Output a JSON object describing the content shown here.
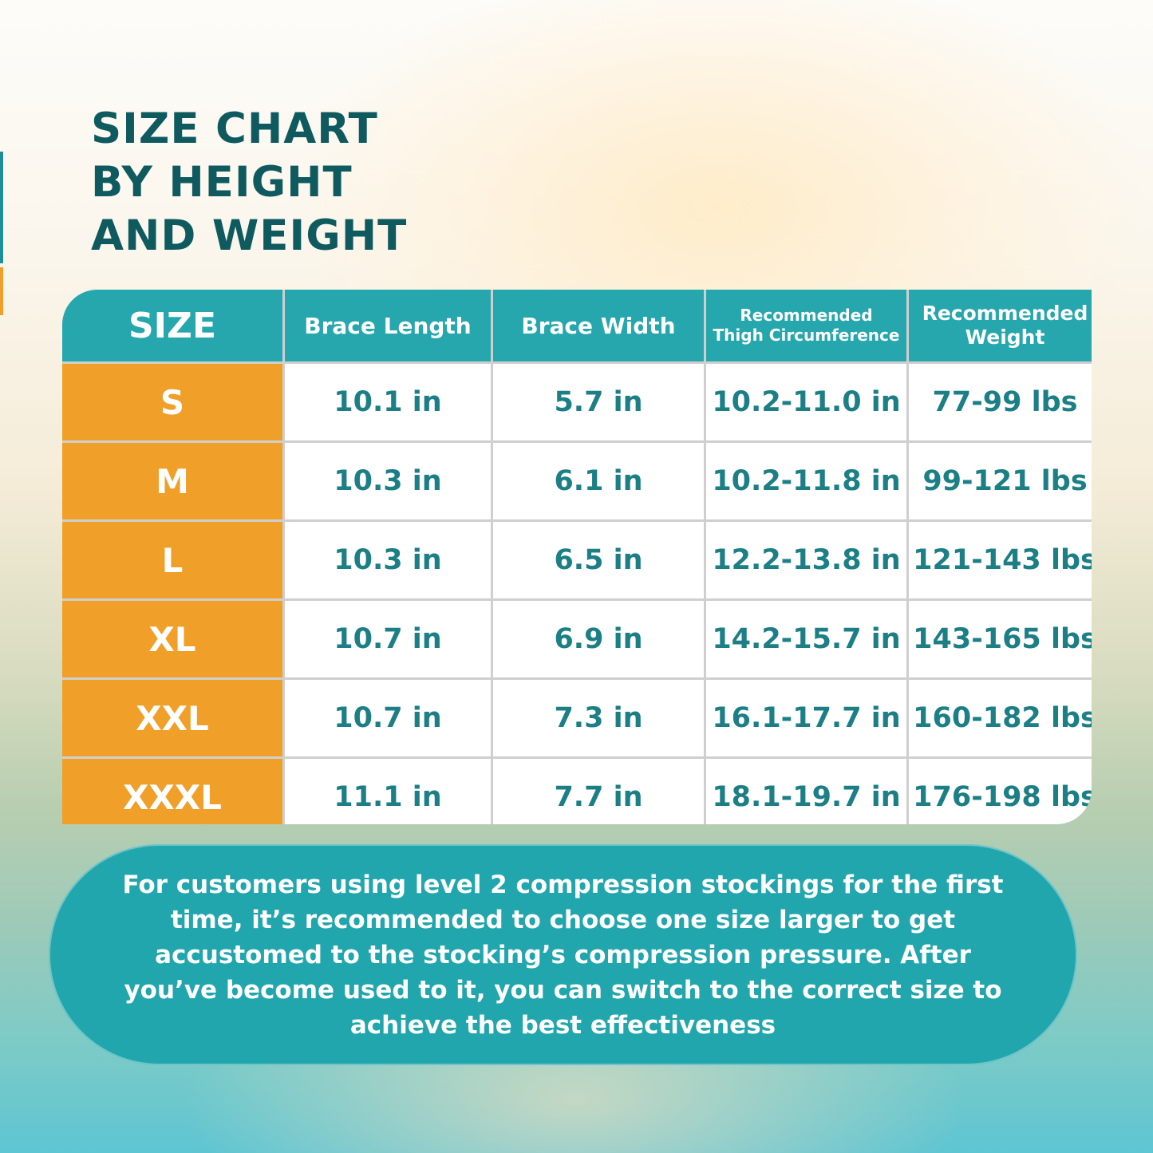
{
  "title": {
    "line1": "SIZE CHART",
    "line2": "BY HEIGHT",
    "line3": "AND WEIGHT"
  },
  "table": {
    "headers": {
      "size": "SIZE",
      "brace_length": "Brace Length",
      "brace_width": "Brace Width",
      "thigh_line1": "Recommended",
      "thigh_line2": "Thigh Circumference",
      "weight_line1": "Recommended",
      "weight_line2": "Weight"
    },
    "rows": [
      {
        "size": "S",
        "length": "10.1 in",
        "width": "5.7 in",
        "thigh": "10.2-11.0 in",
        "weight": "77-99 lbs"
      },
      {
        "size": "M",
        "length": "10.3 in",
        "width": "6.1 in",
        "thigh": "10.2-11.8 in",
        "weight": "99-121 lbs"
      },
      {
        "size": "L",
        "length": "10.3 in",
        "width": "6.5 in",
        "thigh": "12.2-13.8 in",
        "weight": "121-143 lbs"
      },
      {
        "size": "XL",
        "length": "10.7 in",
        "width": "6.9 in",
        "thigh": "14.2-15.7 in",
        "weight": "143-165 lbs"
      },
      {
        "size": "XXL",
        "length": "10.7 in",
        "width": "7.3 in",
        "thigh": "16.1-17.7 in",
        "weight": "160-182 lbs"
      },
      {
        "size": "XXXL",
        "length": "11.1 in",
        "width": "7.7 in",
        "thigh": "18.1-19.7 in",
        "weight": "176-198 lbs"
      }
    ]
  },
  "note": {
    "text": "For customers using level 2 compression stockings for the first time, it’s recommended to choose one size larger to get accustomed to the stocking’s compression pressure. After you’ve become used to it, you can switch to the correct size to achieve the best effectiveness"
  },
  "colors": {
    "title": "#0e5a5f",
    "header_teal": "#26a6ad",
    "size_orange": "#f09f28",
    "cell_text": "#1c7f86",
    "note_bg": "#22a6ad"
  }
}
